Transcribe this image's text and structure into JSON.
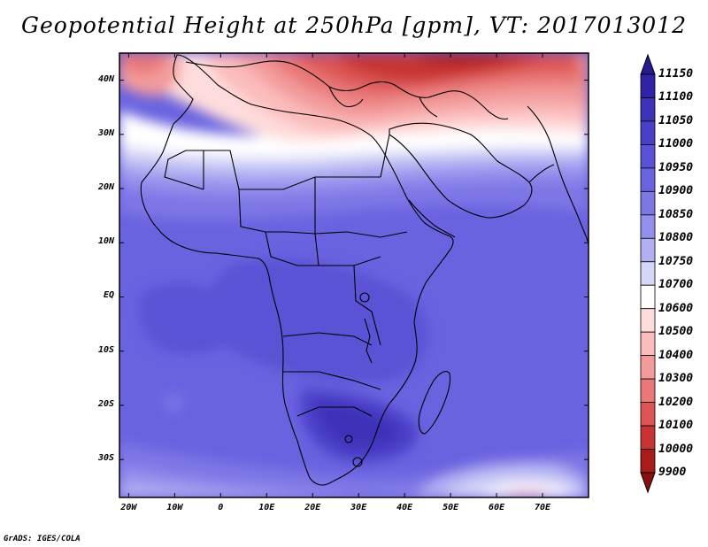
{
  "title": "Geopotential Height at 250hPa [gpm], VT: 2017013012",
  "credit": "GrADS: IGES/COLA",
  "map": {
    "lon_range": [
      -22,
      80
    ],
    "lat_range": [
      -37,
      45
    ],
    "lat_labels": [
      {
        "text": "40N",
        "lat": 40
      },
      {
        "text": "30N",
        "lat": 30
      },
      {
        "text": "20N",
        "lat": 20
      },
      {
        "text": "10N",
        "lat": 10
      },
      {
        "text": "EQ",
        "lat": 0
      },
      {
        "text": "10S",
        "lat": -10
      },
      {
        "text": "20S",
        "lat": -20
      },
      {
        "text": "30S",
        "lat": -30
      }
    ],
    "lon_labels": [
      {
        "text": "20W",
        "lon": -20
      },
      {
        "text": "10W",
        "lon": -10
      },
      {
        "text": "0",
        "lon": 0
      },
      {
        "text": "10E",
        "lon": 10
      },
      {
        "text": "20E",
        "lon": 20
      },
      {
        "text": "30E",
        "lon": 30
      },
      {
        "text": "40E",
        "lon": 40
      },
      {
        "text": "50E",
        "lon": 50
      },
      {
        "text": "60E",
        "lon": 60
      },
      {
        "text": "70E",
        "lon": 70
      }
    ]
  },
  "colorbar": {
    "levels": [
      "11150",
      "11100",
      "11050",
      "11000",
      "10950",
      "10900",
      "10850",
      "10800",
      "10750",
      "10700",
      "10600",
      "10500",
      "10400",
      "10300",
      "10200",
      "10100",
      "10000",
      "9900"
    ],
    "colors": [
      "#261a8c",
      "#3023a6",
      "#3d32b8",
      "#4a40c8",
      "#5a52d6",
      "#6a63e0",
      "#7d77e6",
      "#938fec",
      "#b2b0f2",
      "#d6d6f8",
      "#ffffff",
      "#ffdcdc",
      "#fbbcbc",
      "#f39b9b",
      "#e97878",
      "#dc5454",
      "#c83434",
      "#a81c1c",
      "#8a1010"
    ]
  }
}
